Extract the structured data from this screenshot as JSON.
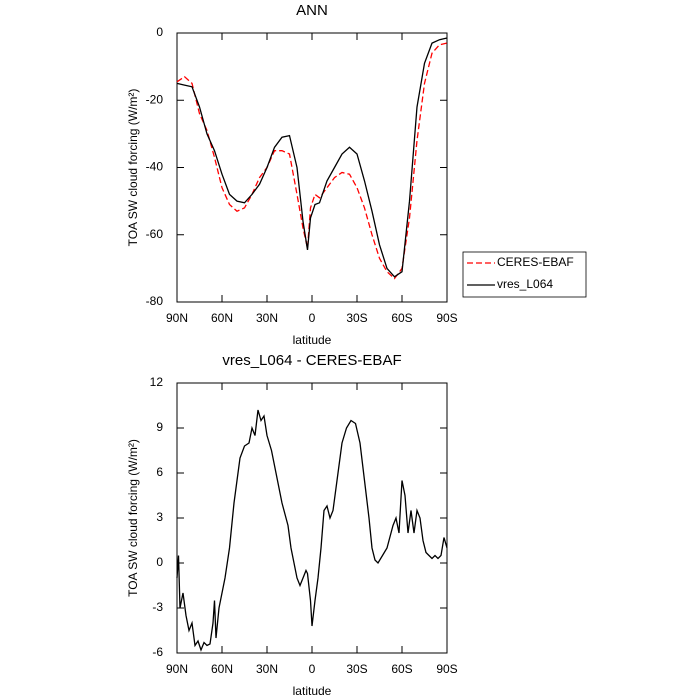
{
  "chart_data": [
    {
      "type": "line",
      "title": "ANN",
      "x_label": "latitude",
      "y_label": "TOA SW cloud forcing (W/m²)",
      "x": [
        90,
        85,
        80,
        75,
        70,
        65,
        60,
        55,
        50,
        45,
        40,
        35,
        30,
        25,
        20,
        15,
        10,
        6,
        3,
        1,
        -2,
        -5,
        -10,
        -15,
        -20,
        -25,
        -30,
        -35,
        -40,
        -45,
        -50,
        -55,
        -60,
        -65,
        -70,
        -75,
        -80,
        -85,
        -90
      ],
      "series": [
        {
          "name": "CERES-EBAF",
          "color": "#ff0000",
          "dashed": true,
          "values": [
            -14.5,
            -13,
            -15,
            -24,
            -29,
            -37,
            -46,
            -51,
            -53,
            -52,
            -48,
            -43,
            -40,
            -35,
            -35,
            -36,
            -48,
            -58,
            -64,
            -52,
            -48,
            -49,
            -46,
            -43,
            -41.5,
            -42,
            -46,
            -52,
            -60,
            -67,
            -71,
            -73,
            -70,
            -55,
            -32,
            -15,
            -6,
            -3.5,
            -3
          ]
        },
        {
          "name": "vres_L064",
          "color": "#000000",
          "dashed": false,
          "values": [
            -15,
            -15.5,
            -16,
            -22,
            -30,
            -35,
            -42,
            -48,
            -50,
            -50.5,
            -48,
            -45,
            -40,
            -34,
            -31,
            -30.5,
            -40,
            -56,
            -64.5,
            -55,
            -51,
            -50.5,
            -44,
            -40,
            -36,
            -34,
            -36,
            -44,
            -53,
            -63,
            -70,
            -72.5,
            -71,
            -50,
            -22,
            -9,
            -3,
            -2,
            -1.5
          ]
        }
      ],
      "xlim": [
        90,
        -90
      ],
      "xticks": [
        {
          "value": 90,
          "label": "90N"
        },
        {
          "value": 60,
          "label": "60N"
        },
        {
          "value": 30,
          "label": "30N"
        },
        0,
        {
          "value": -30,
          "label": "30S"
        },
        {
          "value": -60,
          "label": "60S"
        },
        {
          "value": -90,
          "label": "90S"
        }
      ],
      "ylim": [
        -80,
        0
      ],
      "yticks": [
        -80,
        -60,
        -40,
        -20,
        0
      ],
      "legend": "right"
    },
    {
      "type": "line",
      "title": "vres_L064 - CERES-EBAF",
      "x_label": "latitude",
      "y_label": "TOA SW cloud forcing (W/m²)",
      "x": [
        90,
        89,
        88,
        86,
        84,
        82,
        80,
        78,
        76,
        74,
        72,
        70,
        68,
        66,
        65,
        64,
        62,
        58,
        55,
        52,
        50,
        48,
        45,
        42,
        40,
        38,
        36,
        34,
        32,
        30,
        27,
        24,
        20,
        16,
        14,
        10,
        8,
        6,
        4,
        3,
        1,
        0,
        -2,
        -4,
        -6,
        -8,
        -10,
        -12,
        -14,
        -16,
        -18,
        -20,
        -23,
        -26,
        -29,
        -32,
        -35,
        -38,
        -40,
        -42,
        -44,
        -47,
        -50,
        -54,
        -56,
        -58,
        -60,
        -62,
        -64,
        -66,
        -68,
        -70,
        -72,
        -74,
        -76,
        -78,
        -80,
        -82,
        -84,
        -86,
        -88,
        -90
      ],
      "values": [
        -1,
        0.5,
        -3,
        -2,
        -3.5,
        -4.5,
        -4,
        -5.5,
        -5.2,
        -5.8,
        -5.3,
        -5.5,
        -5.4,
        -4,
        -2.5,
        -5,
        -3,
        -1,
        1,
        4,
        5.5,
        7,
        7.8,
        8,
        9,
        8.5,
        10.2,
        9.5,
        9.8,
        8.5,
        7.5,
        6,
        4,
        2.5,
        1,
        -1,
        -1.5,
        -1,
        -0.5,
        -0.7,
        -2.5,
        -4.2,
        -2.5,
        -1,
        1,
        3.5,
        3.8,
        3,
        3.5,
        5,
        6.5,
        8,
        9,
        9.5,
        9.3,
        8,
        5.5,
        3,
        1,
        0.2,
        0,
        0.5,
        1,
        2.5,
        3,
        2,
        5.5,
        4.5,
        2,
        3.5,
        2,
        3.5,
        3,
        1.5,
        0.7,
        0.5,
        0.3,
        0.5,
        0.3,
        0.5,
        1.7,
        1
      ],
      "color": "#000000",
      "xlim": [
        90,
        -90
      ],
      "xticks": [
        {
          "value": 90,
          "label": "90N"
        },
        {
          "value": 60,
          "label": "60N"
        },
        {
          "value": 30,
          "label": "30N"
        },
        0,
        {
          "value": -30,
          "label": "30S"
        },
        {
          "value": -60,
          "label": "60S"
        },
        {
          "value": -90,
          "label": "90S"
        }
      ],
      "ylim": [
        -6,
        12
      ],
      "yticks": [
        -6,
        -3,
        0,
        3,
        6,
        9,
        12
      ]
    }
  ]
}
